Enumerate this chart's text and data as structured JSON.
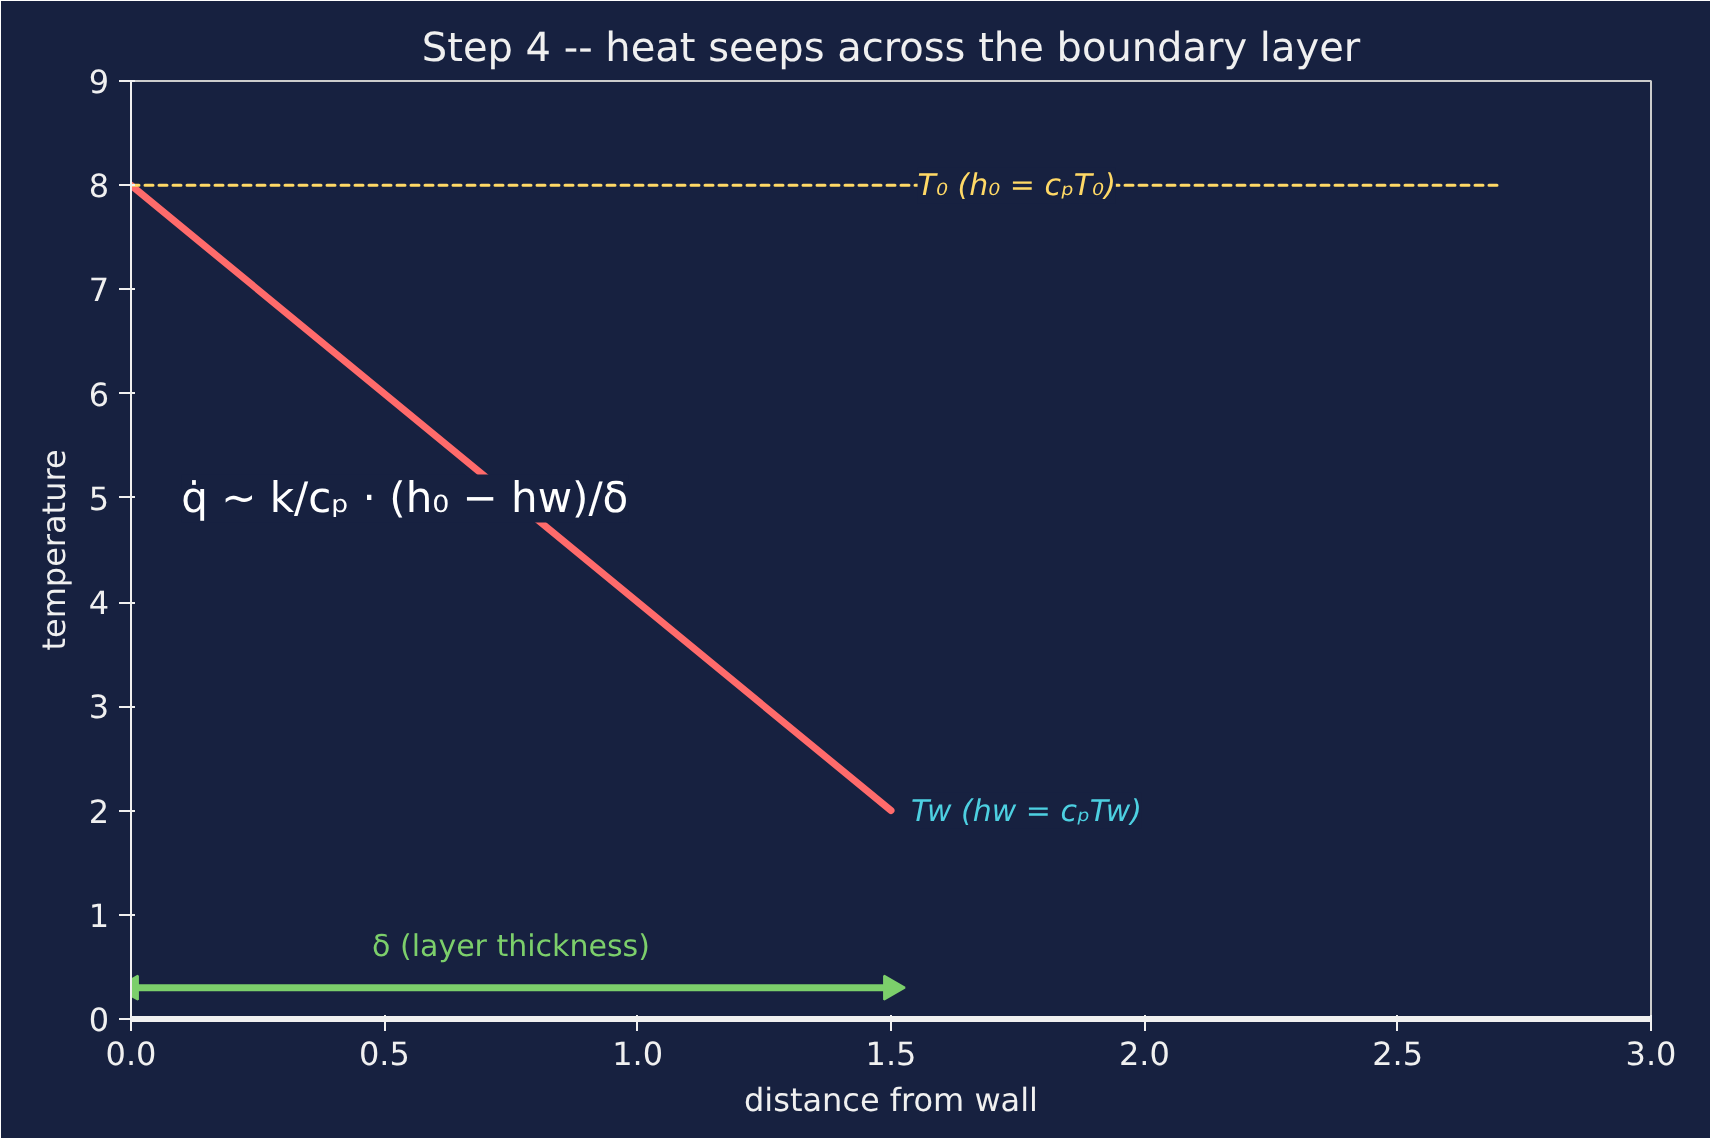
{
  "chart_data": {
    "type": "line",
    "title": "Step 4 -- heat seeps across the boundary layer",
    "xlabel": "distance from wall",
    "ylabel": "temperature",
    "xlim": [
      0,
      3
    ],
    "ylim": [
      0,
      9
    ],
    "xticks": [
      {
        "value": 0,
        "label": "0.0"
      },
      {
        "value": 0.5,
        "label": "0.5"
      },
      {
        "value": 1,
        "label": "1.0"
      },
      {
        "value": 1.5,
        "label": "1.5"
      },
      {
        "value": 2,
        "label": "2.0"
      },
      {
        "value": 2.5,
        "label": "2.5"
      },
      {
        "value": 3,
        "label": "3.0"
      }
    ],
    "yticks": [
      0,
      1,
      2,
      3,
      4,
      5,
      6,
      7,
      8,
      9
    ],
    "grid": false,
    "marker": "none",
    "series": [
      {
        "name": "Tw (hw = cₚTw)",
        "color": "#ff6b6b",
        "x": [
          0,
          1.5
        ],
        "values": [
          8,
          2
        ],
        "line_style": "solid"
      },
      {
        "name": "T₀ (h₀ = cₚT₀)",
        "color": "#ffd966",
        "x": [
          0,
          2.7
        ],
        "values": [
          8,
          8
        ],
        "line_style": "dashed"
      },
      {
        "name": "δ (layer thickness)",
        "color": "#7ccf6b",
        "x": [
          0,
          1.5
        ],
        "values": [
          0.3,
          0.3
        ],
        "line_style": "solid",
        "marker": "triangle"
      }
    ],
    "annotations": [
      "q̇ ~ k/cₚ · (h₀ − hw)/δ"
    ]
  }
}
